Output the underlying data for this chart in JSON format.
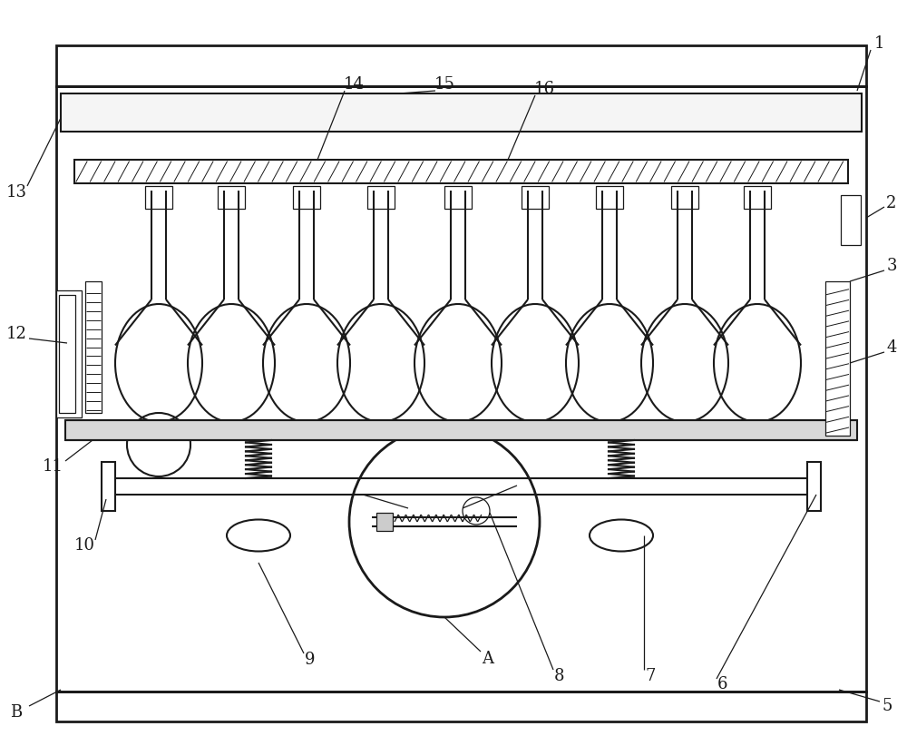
{
  "bg_color": "#ffffff",
  "line_color": "#1a1a1a",
  "lw": 1.5,
  "lw2": 2.0,
  "lw1": 0.9,
  "fig_w": 10.0,
  "fig_h": 8.11
}
